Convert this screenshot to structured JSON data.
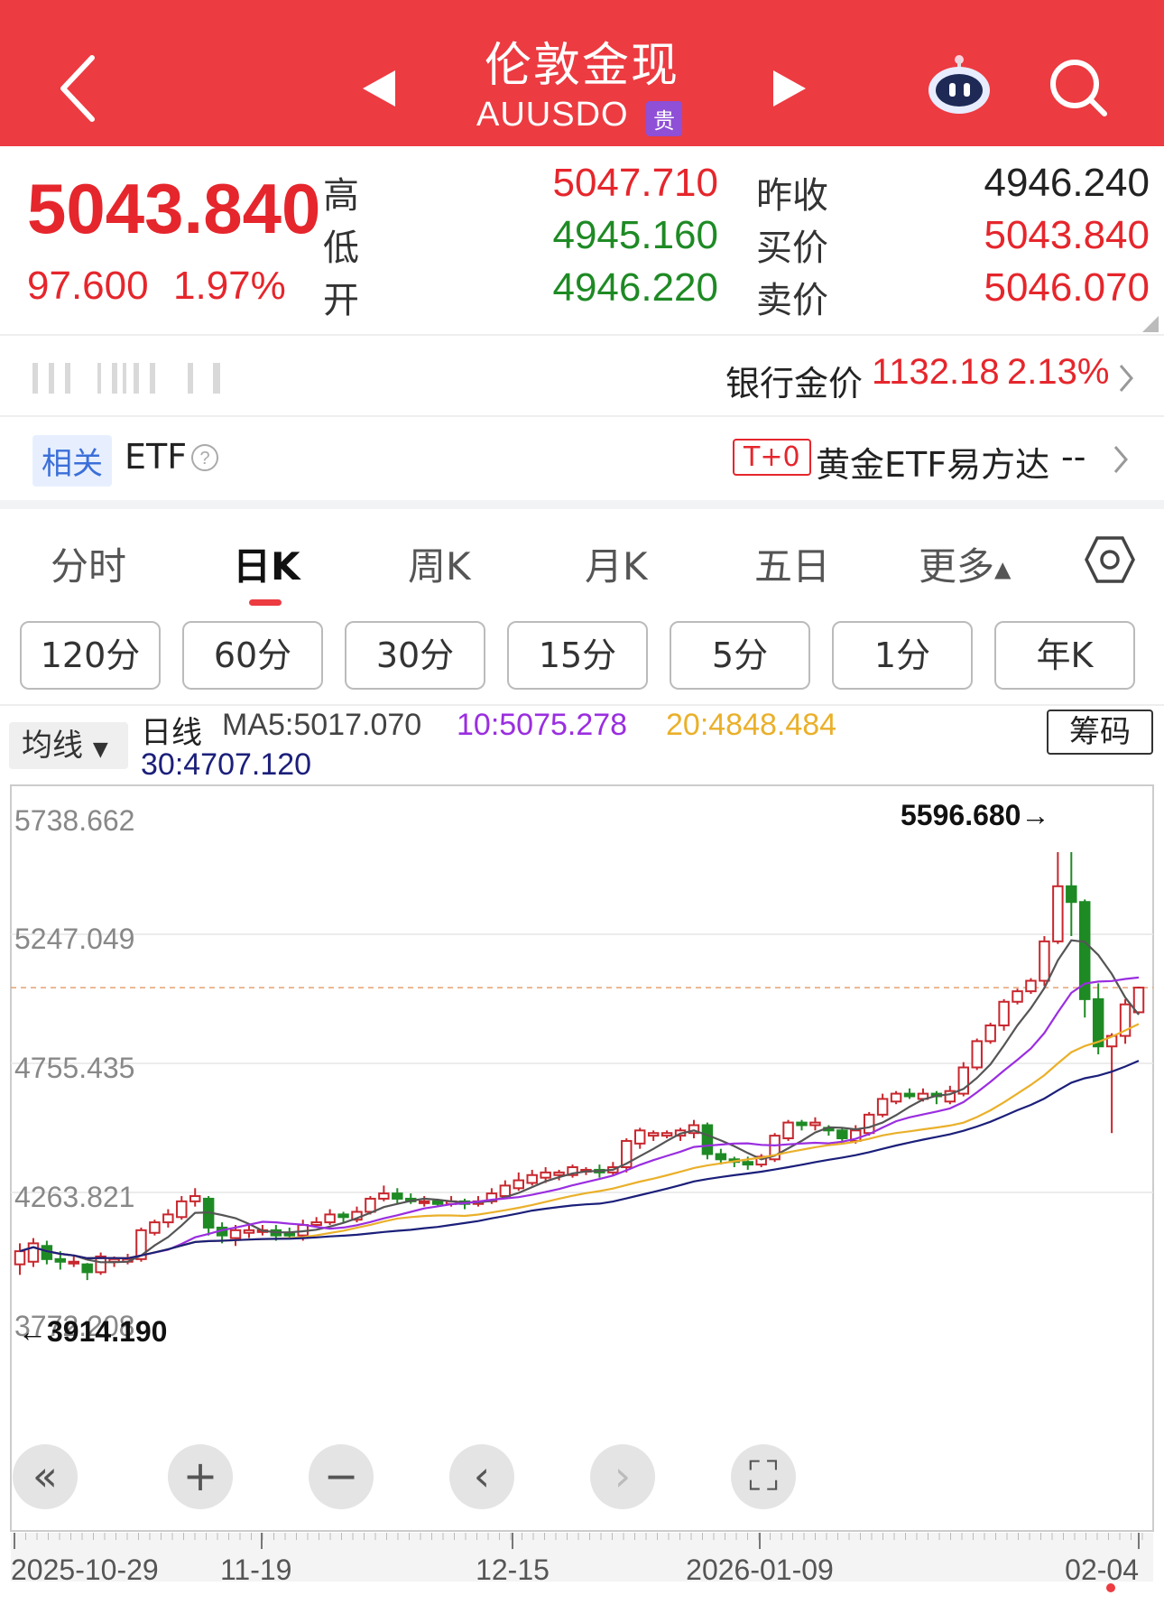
{
  "header": {
    "title": "伦敦金现",
    "code": "AUUSDO",
    "badge": "贵",
    "icons": [
      "back-arrow-icon",
      "prev-triangle-icon",
      "next-triangle-icon",
      "robot-assistant-icon",
      "search-icon"
    ]
  },
  "quote": {
    "price": "5043.840",
    "change": "97.600",
    "change_pct": "1.97%",
    "labels": {
      "high": "高",
      "low": "低",
      "open": "开",
      "prev_close": "昨收",
      "bid": "买价",
      "ask": "卖价"
    },
    "high": "5047.710",
    "low": "4945.160",
    "open": "4946.220",
    "prev_close": "4946.240",
    "bid": "5043.840",
    "ask": "5046.070"
  },
  "bank": {
    "label": "银行金价",
    "price": "1132.18",
    "pct": "2.13%"
  },
  "etf": {
    "tag": "相关",
    "label": "ETF",
    "t0": "T+0",
    "name": "黄金ETF易方达",
    "value": "--"
  },
  "tabs": [
    {
      "label": "分时"
    },
    {
      "label": "日K"
    },
    {
      "label": "周K"
    },
    {
      "label": "月K"
    },
    {
      "label": "五日"
    },
    {
      "label": "更多"
    }
  ],
  "intervals": [
    "120分",
    "60分",
    "30分",
    "15分",
    "5分",
    "1分",
    "年K"
  ],
  "ma_bar": {
    "selector": "均线",
    "period": "日线",
    "ma5": "MA5:5017.070",
    "ma10": "10:5075.278",
    "ma20": "20:4848.484",
    "ma30": "30:4707.120",
    "chip_button": "筹码"
  },
  "colors": {
    "accent": "#ec3b41",
    "up": "#c8262d",
    "down": "#1e8a24",
    "ma5": "#555555",
    "ma10": "#9a2ee0",
    "ma20": "#eab02a",
    "ma30": "#1b1f7a"
  },
  "chart_data": {
    "type": "candlestick",
    "y_ticks": [
      "5738.662",
      "5247.049",
      "4755.435",
      "4263.821",
      "3772.208"
    ],
    "ylim": [
      3772.208,
      5738.662
    ],
    "x_ticks": [
      "2025-10-29",
      "11-19",
      "12-15",
      "2026-01-09",
      "02-04"
    ],
    "max_annotation": "5596.680→",
    "min_annotation": "←3914.190",
    "current_price": 5043.84,
    "candles": [
      [
        3990,
        4040,
        3950,
        4070
      ],
      [
        4000,
        4070,
        3980,
        4090
      ],
      [
        4060,
        4010,
        3990,
        4080
      ],
      [
        4010,
        4000,
        3970,
        4040
      ],
      [
        4000,
        4000,
        3980,
        4020
      ],
      [
        3990,
        3960,
        3930,
        3995
      ],
      [
        3960,
        4020,
        3950,
        4035
      ],
      [
        4000,
        4010,
        3980,
        4020
      ],
      [
        4000,
        4010,
        3990,
        4030
      ],
      [
        4010,
        4120,
        4000,
        4130
      ],
      [
        4110,
        4150,
        4100,
        4160
      ],
      [
        4150,
        4180,
        4130,
        4200
      ],
      [
        4170,
        4230,
        4160,
        4250
      ],
      [
        4230,
        4250,
        4210,
        4280
      ],
      [
        4240,
        4130,
        4100,
        4250
      ],
      [
        4130,
        4100,
        4070,
        4150
      ],
      [
        4090,
        4120,
        4060,
        4140
      ],
      [
        4110,
        4120,
        4090,
        4140
      ],
      [
        4120,
        4120,
        4100,
        4140
      ],
      [
        4120,
        4100,
        4080,
        4140
      ],
      [
        4110,
        4100,
        4090,
        4130
      ],
      [
        4100,
        4140,
        4080,
        4160
      ],
      [
        4140,
        4150,
        4130,
        4170
      ],
      [
        4150,
        4180,
        4140,
        4200
      ],
      [
        4180,
        4170,
        4150,
        4190
      ],
      [
        4160,
        4190,
        4150,
        4210
      ],
      [
        4190,
        4240,
        4180,
        4250
      ],
      [
        4240,
        4260,
        4230,
        4290
      ],
      [
        4260,
        4240,
        4220,
        4280
      ],
      [
        4240,
        4230,
        4220,
        4260
      ],
      [
        4230,
        4230,
        4210,
        4250
      ],
      [
        4230,
        4220,
        4210,
        4240
      ],
      [
        4220,
        4230,
        4210,
        4250
      ],
      [
        4230,
        4220,
        4200,
        4240
      ],
      [
        4220,
        4230,
        4210,
        4250
      ],
      [
        4230,
        4260,
        4220,
        4280
      ],
      [
        4250,
        4290,
        4240,
        4310
      ],
      [
        4280,
        4310,
        4270,
        4340
      ],
      [
        4300,
        4330,
        4290,
        4350
      ],
      [
        4320,
        4340,
        4300,
        4360
      ],
      [
        4330,
        4340,
        4310,
        4350
      ],
      [
        4330,
        4360,
        4320,
        4370
      ],
      [
        4350,
        4350,
        4330,
        4360
      ],
      [
        4350,
        4340,
        4320,
        4370
      ],
      [
        4340,
        4360,
        4330,
        4380
      ],
      [
        4360,
        4460,
        4340,
        4470
      ],
      [
        4450,
        4500,
        4430,
        4510
      ],
      [
        4480,
        4490,
        4460,
        4500
      ],
      [
        4480,
        4490,
        4470,
        4500
      ],
      [
        4480,
        4500,
        4460,
        4510
      ],
      [
        4490,
        4520,
        4470,
        4540
      ],
      [
        4520,
        4410,
        4390,
        4530
      ],
      [
        4410,
        4390,
        4370,
        4430
      ],
      [
        4390,
        4380,
        4360,
        4400
      ],
      [
        4380,
        4370,
        4350,
        4400
      ],
      [
        4370,
        4400,
        4360,
        4410
      ],
      [
        4390,
        4480,
        4380,
        4490
      ],
      [
        4470,
        4530,
        4460,
        4540
      ],
      [
        4530,
        4520,
        4500,
        4540
      ],
      [
        4520,
        4530,
        4500,
        4550
      ],
      [
        4510,
        4500,
        4480,
        4520
      ],
      [
        4500,
        4470,
        4450,
        4510
      ],
      [
        4460,
        4500,
        4450,
        4520
      ],
      [
        4490,
        4560,
        4480,
        4570
      ],
      [
        4560,
        4620,
        4550,
        4640
      ],
      [
        4610,
        4640,
        4600,
        4650
      ],
      [
        4640,
        4630,
        4620,
        4660
      ],
      [
        4620,
        4640,
        4610,
        4660
      ],
      [
        4640,
        4630,
        4600,
        4650
      ],
      [
        4610,
        4650,
        4600,
        4670
      ],
      [
        4640,
        4740,
        4630,
        4760
      ],
      [
        4740,
        4840,
        4730,
        4850
      ],
      [
        4840,
        4900,
        4830,
        4910
      ],
      [
        4900,
        4990,
        4880,
        5000
      ],
      [
        4990,
        5030,
        4980,
        5040
      ],
      [
        5030,
        5070,
        5020,
        5080
      ],
      [
        5070,
        5220,
        5050,
        5240
      ],
      [
        5220,
        5430,
        5210,
        5560
      ],
      [
        5430,
        5370,
        5240,
        5560
      ],
      [
        5370,
        5000,
        4930,
        5380
      ],
      [
        5000,
        4820,
        4790,
        5060
      ],
      [
        4820,
        4860,
        4490,
        4870
      ],
      [
        4860,
        4980,
        4830,
        5000
      ],
      [
        4950,
        5043.84,
        4945.16,
        5047.71
      ]
    ]
  }
}
